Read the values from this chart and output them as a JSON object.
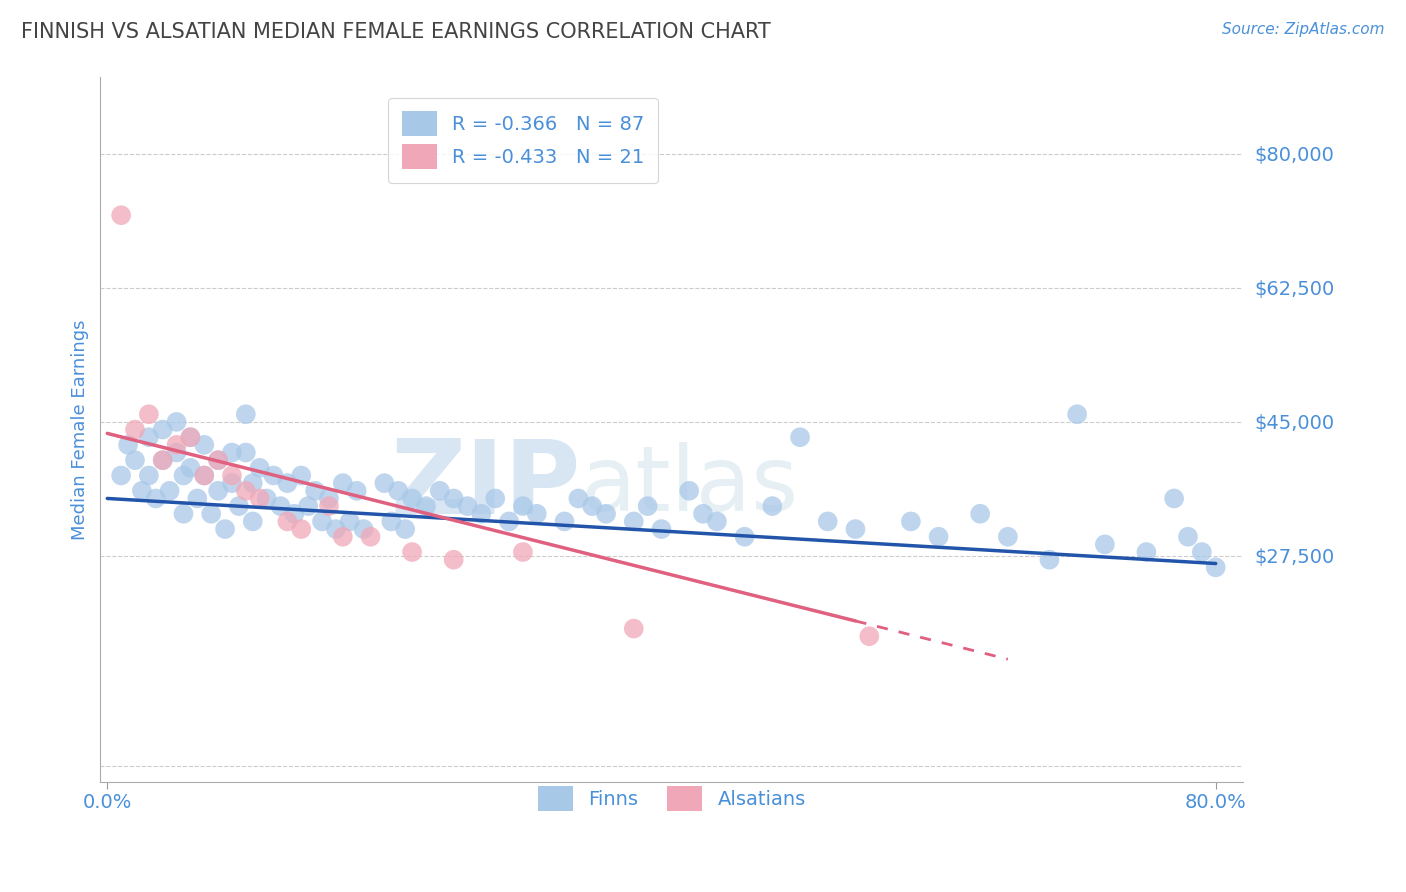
{
  "title": "FINNISH VS ALSATIAN MEDIAN FEMALE EARNINGS CORRELATION CHART",
  "source_text": "Source: ZipAtlas.com",
  "ylabel": "Median Female Earnings",
  "xlim": [
    -0.005,
    0.82
  ],
  "ylim": [
    -2000,
    90000
  ],
  "yticks": [
    0,
    27500,
    45000,
    62500,
    80000
  ],
  "ytick_labels": [
    "",
    "$27,500",
    "$45,000",
    "$62,500",
    "$80,000"
  ],
  "xticks": [
    0.0,
    0.8
  ],
  "xtick_labels": [
    "0.0%",
    "80.0%"
  ],
  "watermark_zip": "ZIP",
  "watermark_atlas": "atlas",
  "watermark_color": "#c8ddf0",
  "title_color": "#444444",
  "tick_label_color": "#4a90d9",
  "grid_color": "#cccccc",
  "background_color": "#ffffff",
  "finn_dot_color": "#a8c8e8",
  "alsatian_dot_color": "#f0a8b8",
  "finn_line_color": "#2255aa",
  "alsatian_line_color": "#e06080",
  "finn_R": -0.366,
  "finn_N": 87,
  "alsatian_R": -0.433,
  "alsatian_N": 21,
  "finn_trend_x0": 0.0,
  "finn_trend_x1": 0.8,
  "finn_trend_y0": 35000,
  "finn_trend_y1": 26500,
  "alsatian_trend_solid_x0": 0.0,
  "alsatian_trend_solid_x1": 0.54,
  "alsatian_trend_solid_y0": 43500,
  "alsatian_trend_solid_y1": 19000,
  "alsatian_trend_dash_x0": 0.54,
  "alsatian_trend_dash_x1": 0.65,
  "alsatian_trend_dash_y0": 19000,
  "alsatian_trend_dash_y1": 14000,
  "finn_scatter_x": [
    0.01,
    0.015,
    0.02,
    0.025,
    0.03,
    0.03,
    0.035,
    0.04,
    0.04,
    0.045,
    0.05,
    0.05,
    0.055,
    0.055,
    0.06,
    0.06,
    0.065,
    0.07,
    0.07,
    0.075,
    0.08,
    0.08,
    0.085,
    0.09,
    0.09,
    0.095,
    0.1,
    0.1,
    0.105,
    0.105,
    0.11,
    0.115,
    0.12,
    0.125,
    0.13,
    0.135,
    0.14,
    0.145,
    0.15,
    0.155,
    0.16,
    0.165,
    0.17,
    0.175,
    0.18,
    0.185,
    0.2,
    0.205,
    0.21,
    0.215,
    0.22,
    0.23,
    0.24,
    0.25,
    0.26,
    0.27,
    0.28,
    0.29,
    0.3,
    0.31,
    0.33,
    0.34,
    0.35,
    0.36,
    0.38,
    0.39,
    0.4,
    0.42,
    0.43,
    0.44,
    0.46,
    0.48,
    0.5,
    0.52,
    0.54,
    0.58,
    0.6,
    0.63,
    0.65,
    0.68,
    0.7,
    0.72,
    0.75,
    0.77,
    0.78,
    0.79,
    0.8
  ],
  "finn_scatter_y": [
    38000,
    42000,
    40000,
    36000,
    43000,
    38000,
    35000,
    44000,
    40000,
    36000,
    45000,
    41000,
    38000,
    33000,
    43000,
    39000,
    35000,
    42000,
    38000,
    33000,
    40000,
    36000,
    31000,
    41000,
    37000,
    34000,
    46000,
    41000,
    37000,
    32000,
    39000,
    35000,
    38000,
    34000,
    37000,
    33000,
    38000,
    34000,
    36000,
    32000,
    35000,
    31000,
    37000,
    32000,
    36000,
    31000,
    37000,
    32000,
    36000,
    31000,
    35000,
    34000,
    36000,
    35000,
    34000,
    33000,
    35000,
    32000,
    34000,
    33000,
    32000,
    35000,
    34000,
    33000,
    32000,
    34000,
    31000,
    36000,
    33000,
    32000,
    30000,
    34000,
    43000,
    32000,
    31000,
    32000,
    30000,
    33000,
    30000,
    27000,
    46000,
    29000,
    28000,
    35000,
    30000,
    28000,
    26000
  ],
  "alsatian_scatter_x": [
    0.01,
    0.02,
    0.03,
    0.04,
    0.05,
    0.06,
    0.07,
    0.08,
    0.09,
    0.1,
    0.11,
    0.13,
    0.14,
    0.16,
    0.17,
    0.19,
    0.22,
    0.25,
    0.3,
    0.38,
    0.55
  ],
  "alsatian_scatter_y": [
    72000,
    44000,
    46000,
    40000,
    42000,
    43000,
    38000,
    40000,
    38000,
    36000,
    35000,
    32000,
    31000,
    34000,
    30000,
    30000,
    28000,
    27000,
    28000,
    18000,
    17000
  ]
}
